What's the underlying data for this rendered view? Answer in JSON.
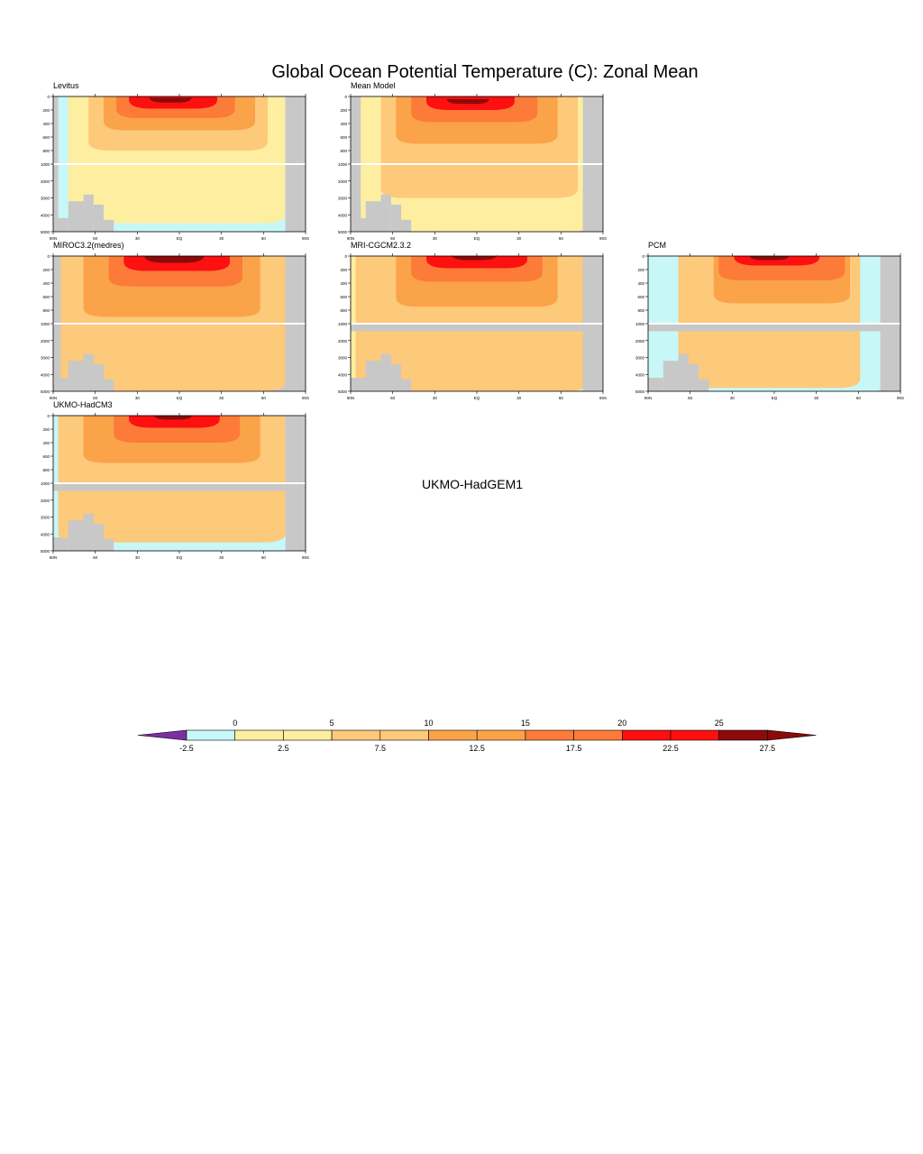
{
  "title": "Global Ocean Potential Temperature (C): Zonal Mean",
  "axes": {
    "x_ticks": [
      "90N",
      "60",
      "30",
      "EQ",
      "30",
      "60",
      "90S"
    ],
    "y_ticks": [
      "0",
      "200",
      "400",
      "600",
      "800",
      "1000",
      "2000",
      "3000",
      "4000",
      "5000"
    ]
  },
  "missing_panel_label": "UKMO-HadGEM1",
  "chart_data": [
    {
      "type": "heatmap",
      "title": "Levitus",
      "land": "grey",
      "deep_gap": false,
      "bands": [
        {
          "value": 27.5,
          "x": [
            38,
            55
          ],
          "depth": [
            20,
            90
          ]
        },
        {
          "value": 22.5,
          "x": [
            30,
            65
          ],
          "depth": [
            0,
            180
          ]
        },
        {
          "value": 17.5,
          "x": [
            25,
            72
          ],
          "depth": [
            0,
            320
          ]
        },
        {
          "value": 12.5,
          "x": [
            20,
            80
          ],
          "depth": [
            0,
            500
          ]
        },
        {
          "value": 7.5,
          "x": [
            14,
            85
          ],
          "depth": [
            0,
            800
          ]
        },
        {
          "value": 2.5,
          "x": [
            6,
            92
          ],
          "depth": [
            0,
            4500
          ]
        },
        {
          "value": -2.5,
          "x": [
            2,
            98
          ],
          "depth": [
            0,
            5000
          ]
        }
      ]
    },
    {
      "type": "heatmap",
      "title": "Mean Model",
      "land": "grey",
      "deep_gap": false,
      "bands": [
        {
          "value": 27.5,
          "x": [
            38,
            55
          ],
          "depth": [
            40,
            110
          ]
        },
        {
          "value": 22.5,
          "x": [
            30,
            65
          ],
          "depth": [
            0,
            200
          ]
        },
        {
          "value": 17.5,
          "x": [
            24,
            74
          ],
          "depth": [
            0,
            380
          ]
        },
        {
          "value": 12.5,
          "x": [
            18,
            82
          ],
          "depth": [
            0,
            700
          ]
        },
        {
          "value": 7.5,
          "x": [
            12,
            90
          ],
          "depth": [
            0,
            3000
          ]
        },
        {
          "value": 2.5,
          "x": [
            4,
            96
          ],
          "depth": [
            0,
            5000
          ]
        }
      ]
    },
    {
      "type": "heatmap",
      "title": "MIROC3.2(medres)",
      "land": "grey",
      "deep_gap": false,
      "bands": [
        {
          "value": 27.5,
          "x": [
            36,
            60
          ],
          "depth": [
            0,
            100
          ]
        },
        {
          "value": 22.5,
          "x": [
            28,
            70
          ],
          "depth": [
            0,
            220
          ]
        },
        {
          "value": 17.5,
          "x": [
            22,
            75
          ],
          "depth": [
            0,
            450
          ]
        },
        {
          "value": 12.5,
          "x": [
            12,
            82
          ],
          "depth": [
            0,
            900
          ]
        },
        {
          "value": 7.5,
          "x": [
            3,
            92
          ],
          "depth": [
            0,
            5000
          ]
        }
      ]
    },
    {
      "type": "heatmap",
      "title": "MRI-CGCM2.3.2",
      "land": "grey",
      "deep_gap": true,
      "bands": [
        {
          "value": 27.5,
          "x": [
            40,
            58
          ],
          "depth": [
            0,
            60
          ]
        },
        {
          "value": 22.5,
          "x": [
            30,
            70
          ],
          "depth": [
            0,
            180
          ]
        },
        {
          "value": 17.5,
          "x": [
            24,
            76
          ],
          "depth": [
            0,
            380
          ]
        },
        {
          "value": 12.5,
          "x": [
            18,
            82
          ],
          "depth": [
            0,
            750
          ]
        },
        {
          "value": 7.5,
          "x": [
            2,
            94
          ],
          "depth": [
            0,
            5000
          ]
        },
        {
          "value": 2.5,
          "x": [
            0,
            98
          ],
          "depth": [
            0,
            5000
          ]
        }
      ]
    },
    {
      "type": "heatmap",
      "title": "PCM",
      "land": "grey",
      "deep_gap": true,
      "bands": [
        {
          "value": 27.5,
          "x": [
            40,
            56
          ],
          "depth": [
            0,
            60
          ]
        },
        {
          "value": 22.5,
          "x": [
            34,
            68
          ],
          "depth": [
            0,
            140
          ]
        },
        {
          "value": 17.5,
          "x": [
            28,
            78
          ],
          "depth": [
            0,
            360
          ]
        },
        {
          "value": 12.5,
          "x": [
            26,
            80
          ],
          "depth": [
            0,
            700
          ]
        },
        {
          "value": 7.5,
          "x": [
            12,
            84
          ],
          "depth": [
            0,
            4800
          ]
        },
        {
          "value": -2.5,
          "x": [
            0,
            96
          ],
          "depth": [
            0,
            5000
          ]
        }
      ]
    },
    {
      "type": "heatmap",
      "title": "UKMO-HadCM3",
      "land": "grey",
      "deep_gap": true,
      "bands": [
        {
          "value": 27.5,
          "x": [
            40,
            55
          ],
          "depth": [
            0,
            60
          ]
        },
        {
          "value": 22.5,
          "x": [
            30,
            66
          ],
          "depth": [
            0,
            180
          ]
        },
        {
          "value": 17.5,
          "x": [
            24,
            74
          ],
          "depth": [
            0,
            400
          ]
        },
        {
          "value": 12.5,
          "x": [
            12,
            82
          ],
          "depth": [
            0,
            700
          ]
        },
        {
          "value": 7.5,
          "x": [
            2,
            92
          ],
          "depth": [
            0,
            4500
          ]
        },
        {
          "value": -2.5,
          "x": [
            0,
            98
          ],
          "depth": [
            0,
            5000
          ]
        }
      ]
    }
  ],
  "colorbar": {
    "top_labels": [
      "0",
      "5",
      "10",
      "15",
      "20",
      "25"
    ],
    "bottom_labels": [
      "-2.5",
      "2.5",
      "7.5",
      "12.5",
      "17.5",
      "22.5",
      "27.5"
    ],
    "colors": [
      "#7b2fa3",
      "#c8f7f7",
      "#fdeea0",
      "#fdeea0",
      "#fdc97a",
      "#fdc97a",
      "#fba349",
      "#fba349",
      "#fc7b39",
      "#fc7b39",
      "#fc1010",
      "#fc1010",
      "#8c0a0a",
      "#8c0a0a"
    ]
  }
}
